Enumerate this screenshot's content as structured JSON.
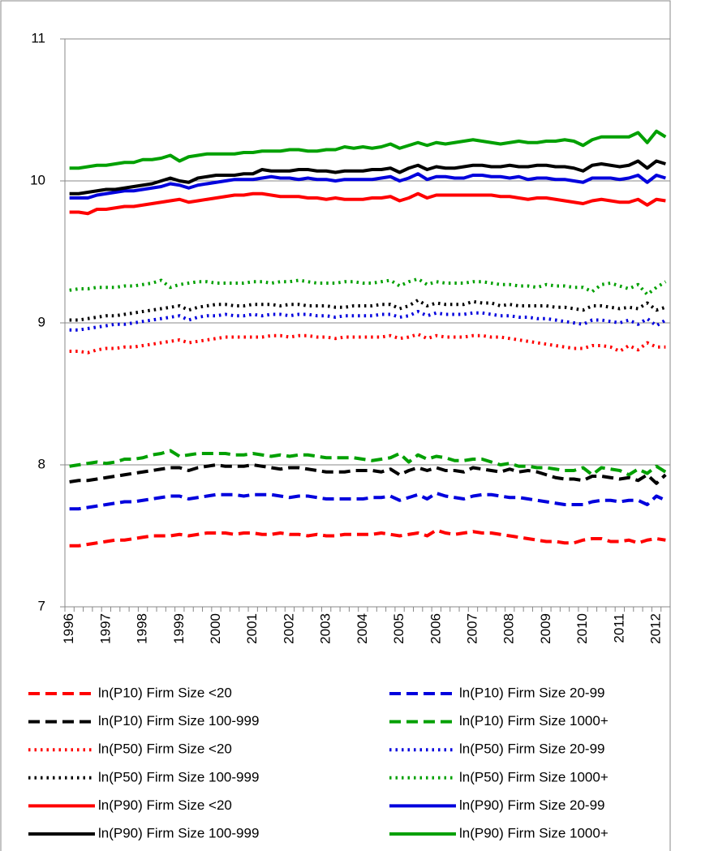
{
  "chart_data": {
    "type": "line",
    "categories": [
      "1996",
      null,
      null,
      null,
      "1997",
      null,
      null,
      null,
      "1998",
      null,
      null,
      null,
      "1999",
      null,
      null,
      null,
      "2000",
      null,
      null,
      null,
      "2001",
      null,
      null,
      null,
      "2002",
      null,
      null,
      null,
      "2003",
      null,
      null,
      null,
      "2004",
      null,
      null,
      null,
      "2005",
      null,
      null,
      null,
      "2006",
      null,
      null,
      null,
      "2007",
      null,
      null,
      null,
      "2008",
      null,
      null,
      null,
      "2009",
      null,
      null,
      null,
      "2010",
      null,
      null,
      null,
      "2011",
      null,
      null,
      null,
      "2012",
      null
    ],
    "ylim": [
      7,
      11
    ],
    "yticks": [
      7,
      8,
      9,
      10,
      11
    ],
    "grid": true,
    "series": [
      {
        "name": "ln(P10) Firm Size <20",
        "color": "#ff0000",
        "dash": "dashed",
        "values": [
          7.43,
          7.43,
          7.44,
          7.45,
          7.46,
          7.47,
          7.47,
          7.48,
          7.49,
          7.5,
          7.5,
          7.5,
          7.51,
          7.5,
          7.51,
          7.52,
          7.52,
          7.52,
          7.51,
          7.52,
          7.52,
          7.51,
          7.51,
          7.52,
          7.51,
          7.51,
          7.5,
          7.51,
          7.5,
          7.5,
          7.51,
          7.51,
          7.51,
          7.51,
          7.52,
          7.51,
          7.5,
          7.51,
          7.52,
          7.5,
          7.54,
          7.52,
          7.51,
          7.52,
          7.53,
          7.52,
          7.52,
          7.51,
          7.5,
          7.49,
          7.48,
          7.47,
          7.46,
          7.46,
          7.45,
          7.45,
          7.47,
          7.48,
          7.48,
          7.46,
          7.46,
          7.47,
          7.45,
          7.47,
          7.48,
          7.47
        ]
      },
      {
        "name": "ln(P10) Firm Size 20-99",
        "color": "#0000dd",
        "dash": "dashed",
        "values": [
          7.69,
          7.69,
          7.7,
          7.71,
          7.72,
          7.73,
          7.74,
          7.74,
          7.75,
          7.76,
          7.77,
          7.78,
          7.78,
          7.76,
          7.77,
          7.78,
          7.79,
          7.79,
          7.79,
          7.78,
          7.79,
          7.79,
          7.79,
          7.78,
          7.77,
          7.78,
          7.78,
          7.77,
          7.76,
          7.76,
          7.76,
          7.76,
          7.76,
          7.77,
          7.77,
          7.78,
          7.75,
          7.77,
          7.79,
          7.76,
          7.8,
          7.78,
          7.77,
          7.76,
          7.78,
          7.79,
          7.79,
          7.78,
          7.77,
          7.77,
          7.76,
          7.75,
          7.74,
          7.73,
          7.72,
          7.72,
          7.72,
          7.74,
          7.75,
          7.75,
          7.74,
          7.75,
          7.75,
          7.72,
          7.78,
          7.75
        ]
      },
      {
        "name": "ln(P10) Firm Size 100-999",
        "color": "#000000",
        "dash": "dashed",
        "values": [
          7.88,
          7.89,
          7.89,
          7.9,
          7.91,
          7.92,
          7.93,
          7.94,
          7.95,
          7.96,
          7.97,
          7.98,
          7.98,
          7.96,
          7.98,
          7.99,
          8.0,
          7.99,
          7.99,
          7.99,
          8.0,
          7.99,
          7.98,
          7.97,
          7.98,
          7.98,
          7.97,
          7.96,
          7.95,
          7.95,
          7.95,
          7.96,
          7.96,
          7.96,
          7.95,
          7.97,
          7.93,
          7.96,
          7.98,
          7.96,
          7.98,
          7.96,
          7.96,
          7.95,
          7.98,
          7.97,
          7.96,
          7.95,
          7.97,
          7.95,
          7.96,
          7.95,
          7.93,
          7.91,
          7.9,
          7.9,
          7.89,
          7.92,
          7.92,
          7.91,
          7.9,
          7.91,
          7.89,
          7.93,
          7.87,
          7.93
        ]
      },
      {
        "name": "ln(P10) Firm Size 1000+",
        "color": "#00a000",
        "dash": "dashed",
        "values": [
          7.99,
          8.0,
          8.01,
          8.02,
          8.01,
          8.02,
          8.04,
          8.04,
          8.05,
          8.07,
          8.08,
          8.1,
          8.06,
          8.07,
          8.08,
          8.08,
          8.08,
          8.08,
          8.07,
          8.07,
          8.08,
          8.07,
          8.06,
          8.07,
          8.06,
          8.07,
          8.07,
          8.06,
          8.05,
          8.05,
          8.05,
          8.05,
          8.04,
          8.03,
          8.04,
          8.05,
          8.08,
          8.02,
          8.07,
          8.04,
          8.06,
          8.05,
          8.03,
          8.03,
          8.04,
          8.04,
          8.02,
          8.0,
          8.01,
          7.99,
          7.99,
          7.98,
          7.98,
          7.97,
          7.96,
          7.96,
          7.98,
          7.93,
          7.98,
          7.97,
          7.96,
          7.93,
          7.97,
          7.94,
          7.99,
          7.95
        ]
      },
      {
        "name": "ln(P50) Firm Size <20",
        "color": "#ff0000",
        "dash": "dotted",
        "values": [
          8.8,
          8.8,
          8.79,
          8.81,
          8.82,
          8.82,
          8.83,
          8.83,
          8.84,
          8.85,
          8.86,
          8.87,
          8.88,
          8.86,
          8.87,
          8.88,
          8.89,
          8.9,
          8.9,
          8.9,
          8.9,
          8.9,
          8.91,
          8.91,
          8.9,
          8.91,
          8.91,
          8.9,
          8.9,
          8.89,
          8.9,
          8.9,
          8.9,
          8.9,
          8.9,
          8.91,
          8.89,
          8.9,
          8.92,
          8.89,
          8.91,
          8.9,
          8.9,
          8.9,
          8.91,
          8.91,
          8.9,
          8.9,
          8.89,
          8.88,
          8.87,
          8.86,
          8.85,
          8.84,
          8.83,
          8.82,
          8.82,
          8.84,
          8.84,
          8.83,
          8.8,
          8.84,
          8.81,
          8.86,
          8.83,
          8.83
        ]
      },
      {
        "name": "ln(P50) Firm Size 20-99",
        "color": "#0000dd",
        "dash": "dotted",
        "values": [
          8.95,
          8.95,
          8.96,
          8.97,
          8.98,
          8.99,
          8.99,
          9.0,
          9.01,
          9.02,
          9.03,
          9.04,
          9.05,
          9.02,
          9.04,
          9.05,
          9.05,
          9.06,
          9.05,
          9.05,
          9.06,
          9.05,
          9.06,
          9.06,
          9.05,
          9.06,
          9.06,
          9.05,
          9.05,
          9.04,
          9.05,
          9.05,
          9.05,
          9.05,
          9.06,
          9.06,
          9.04,
          9.05,
          9.08,
          9.05,
          9.07,
          9.06,
          9.06,
          9.06,
          9.07,
          9.07,
          9.06,
          9.05,
          9.05,
          9.04,
          9.04,
          9.03,
          9.03,
          9.02,
          9.01,
          9.0,
          8.99,
          9.02,
          9.02,
          9.01,
          9.0,
          9.02,
          8.99,
          9.03,
          8.98,
          9.02
        ]
      },
      {
        "name": "ln(P50) Firm Size 100-999",
        "color": "#000000",
        "dash": "dotted",
        "values": [
          9.02,
          9.02,
          9.03,
          9.04,
          9.05,
          9.05,
          9.06,
          9.07,
          9.08,
          9.09,
          9.1,
          9.11,
          9.12,
          9.09,
          9.11,
          9.12,
          9.13,
          9.13,
          9.12,
          9.12,
          9.13,
          9.13,
          9.13,
          9.12,
          9.13,
          9.13,
          9.12,
          9.12,
          9.12,
          9.11,
          9.11,
          9.12,
          9.12,
          9.12,
          9.13,
          9.13,
          9.1,
          9.12,
          9.16,
          9.12,
          9.14,
          9.13,
          9.13,
          9.13,
          9.15,
          9.14,
          9.14,
          9.12,
          9.13,
          9.12,
          9.12,
          9.12,
          9.12,
          9.11,
          9.11,
          9.1,
          9.09,
          9.12,
          9.12,
          9.11,
          9.1,
          9.11,
          9.1,
          9.14,
          9.09,
          9.11
        ]
      },
      {
        "name": "ln(P50) Firm Size 1000+",
        "color": "#00a000",
        "dash": "dotted",
        "values": [
          9.23,
          9.24,
          9.24,
          9.25,
          9.25,
          9.25,
          9.26,
          9.26,
          9.27,
          9.28,
          9.3,
          9.25,
          9.27,
          9.28,
          9.29,
          9.29,
          9.28,
          9.28,
          9.28,
          9.28,
          9.29,
          9.29,
          9.28,
          9.29,
          9.29,
          9.3,
          9.29,
          9.28,
          9.28,
          9.28,
          9.29,
          9.29,
          9.28,
          9.28,
          9.29,
          9.3,
          9.26,
          9.29,
          9.31,
          9.27,
          9.29,
          9.28,
          9.28,
          9.28,
          9.29,
          9.29,
          9.28,
          9.27,
          9.27,
          9.26,
          9.26,
          9.25,
          9.27,
          9.26,
          9.26,
          9.25,
          9.25,
          9.22,
          9.27,
          9.28,
          9.26,
          9.24,
          9.27,
          9.2,
          9.25,
          9.29
        ]
      },
      {
        "name": "ln(P90) Firm Size <20",
        "color": "#ff0000",
        "dash": "solid",
        "values": [
          9.78,
          9.78,
          9.77,
          9.8,
          9.8,
          9.81,
          9.82,
          9.82,
          9.83,
          9.84,
          9.85,
          9.86,
          9.87,
          9.85,
          9.86,
          9.87,
          9.88,
          9.89,
          9.9,
          9.9,
          9.91,
          9.91,
          9.9,
          9.89,
          9.89,
          9.89,
          9.88,
          9.88,
          9.87,
          9.88,
          9.87,
          9.87,
          9.87,
          9.88,
          9.88,
          9.89,
          9.86,
          9.88,
          9.91,
          9.88,
          9.9,
          9.9,
          9.9,
          9.9,
          9.9,
          9.9,
          9.9,
          9.89,
          9.89,
          9.88,
          9.87,
          9.88,
          9.88,
          9.87,
          9.86,
          9.85,
          9.84,
          9.86,
          9.87,
          9.86,
          9.85,
          9.85,
          9.87,
          9.83,
          9.87,
          9.86
        ]
      },
      {
        "name": "ln(P90) Firm Size 20-99",
        "color": "#0000dd",
        "dash": "solid",
        "values": [
          9.88,
          9.88,
          9.88,
          9.9,
          9.91,
          9.92,
          9.93,
          9.93,
          9.94,
          9.95,
          9.96,
          9.98,
          9.97,
          9.95,
          9.97,
          9.98,
          9.99,
          10.0,
          10.01,
          10.01,
          10.01,
          10.02,
          10.03,
          10.02,
          10.02,
          10.01,
          10.02,
          10.01,
          10.01,
          10.0,
          10.01,
          10.01,
          10.01,
          10.01,
          10.02,
          10.03,
          10.0,
          10.02,
          10.05,
          10.01,
          10.03,
          10.03,
          10.02,
          10.02,
          10.04,
          10.04,
          10.03,
          10.03,
          10.02,
          10.03,
          10.01,
          10.02,
          10.02,
          10.01,
          10.01,
          10.0,
          9.99,
          10.02,
          10.02,
          10.02,
          10.01,
          10.02,
          10.04,
          9.99,
          10.04,
          10.02
        ]
      },
      {
        "name": "ln(P90) Firm Size 100-999",
        "color": "#000000",
        "dash": "solid",
        "values": [
          9.91,
          9.91,
          9.92,
          9.93,
          9.94,
          9.94,
          9.95,
          9.96,
          9.97,
          9.98,
          10.0,
          10.02,
          10.0,
          9.99,
          10.02,
          10.03,
          10.04,
          10.04,
          10.04,
          10.05,
          10.05,
          10.08,
          10.07,
          10.07,
          10.07,
          10.08,
          10.08,
          10.07,
          10.07,
          10.06,
          10.07,
          10.07,
          10.07,
          10.08,
          10.08,
          10.09,
          10.06,
          10.09,
          10.11,
          10.08,
          10.1,
          10.09,
          10.09,
          10.1,
          10.11,
          10.11,
          10.1,
          10.1,
          10.11,
          10.1,
          10.1,
          10.11,
          10.11,
          10.1,
          10.1,
          10.09,
          10.07,
          10.11,
          10.12,
          10.11,
          10.1,
          10.11,
          10.14,
          10.09,
          10.14,
          10.12
        ]
      },
      {
        "name": "ln(P90) Firm Size 1000+",
        "color": "#00a000",
        "dash": "solid",
        "values": [
          10.09,
          10.09,
          10.1,
          10.11,
          10.11,
          10.12,
          10.13,
          10.13,
          10.15,
          10.15,
          10.16,
          10.18,
          10.14,
          10.17,
          10.18,
          10.19,
          10.19,
          10.19,
          10.19,
          10.2,
          10.2,
          10.21,
          10.21,
          10.21,
          10.22,
          10.22,
          10.21,
          10.21,
          10.22,
          10.22,
          10.24,
          10.23,
          10.24,
          10.23,
          10.24,
          10.26,
          10.23,
          10.25,
          10.27,
          10.25,
          10.27,
          10.26,
          10.27,
          10.28,
          10.29,
          10.28,
          10.27,
          10.26,
          10.27,
          10.28,
          10.27,
          10.27,
          10.28,
          10.28,
          10.29,
          10.28,
          10.25,
          10.29,
          10.31,
          10.31,
          10.31,
          10.31,
          10.34,
          10.27,
          10.35,
          10.31
        ]
      }
    ]
  }
}
